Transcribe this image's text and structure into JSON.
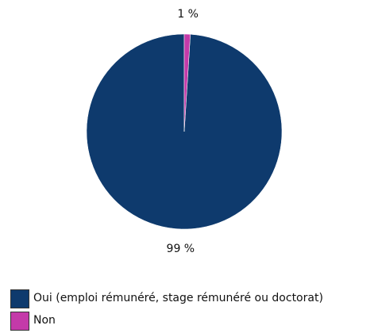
{
  "chart_data": {
    "type": "pie",
    "categories": [
      "Oui (emploi rémunéré, stage rémunéré ou doctorat)",
      "Non"
    ],
    "values": [
      99,
      1
    ],
    "value_labels": [
      "99 %",
      "1 %"
    ],
    "colors": [
      "#0e3a6d",
      "#c43aa9"
    ],
    "legend": "bottom-left"
  }
}
